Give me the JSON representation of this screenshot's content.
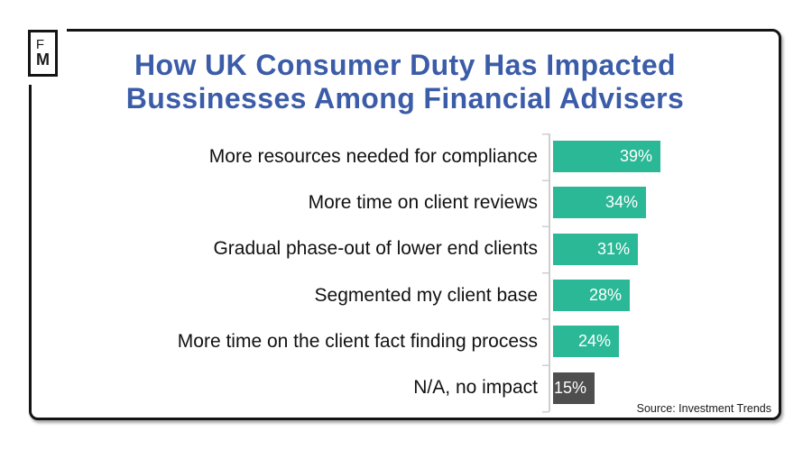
{
  "logo": {
    "line1": "F",
    "line2": "M"
  },
  "header": {
    "title_line1": "How UK Consumer Duty Has Impacted",
    "title_line2": "Bussinesses Among Financial Advisers",
    "title_color": "#3B5CA8"
  },
  "chart_data": {
    "type": "bar",
    "orientation": "horizontal",
    "title": "How UK Consumer Duty Has Impacted Bussinesses Among Financial Advisers",
    "categories": [
      "More resources needed for compliance",
      "More time on client reviews",
      "Gradual phase-out of lower end clients",
      "Segmented my client base",
      "More time on the client fact finding process",
      "N/A, no impact"
    ],
    "values": [
      39,
      34,
      31,
      28,
      24,
      15
    ],
    "value_labels": [
      "39%",
      "34%",
      "31%",
      "28%",
      "24%",
      "15%"
    ],
    "bar_colors": [
      "#2BB896",
      "#2BB896",
      "#2BB896",
      "#2BB896",
      "#2BB896",
      "#4E4E4E"
    ],
    "xlabel": "",
    "ylabel": "",
    "xlim": [
      0,
      40
    ],
    "grid": false,
    "legend": "none",
    "axis_color": "#CFCFCF"
  },
  "footer": {
    "source": "Source: Investment Trends"
  }
}
